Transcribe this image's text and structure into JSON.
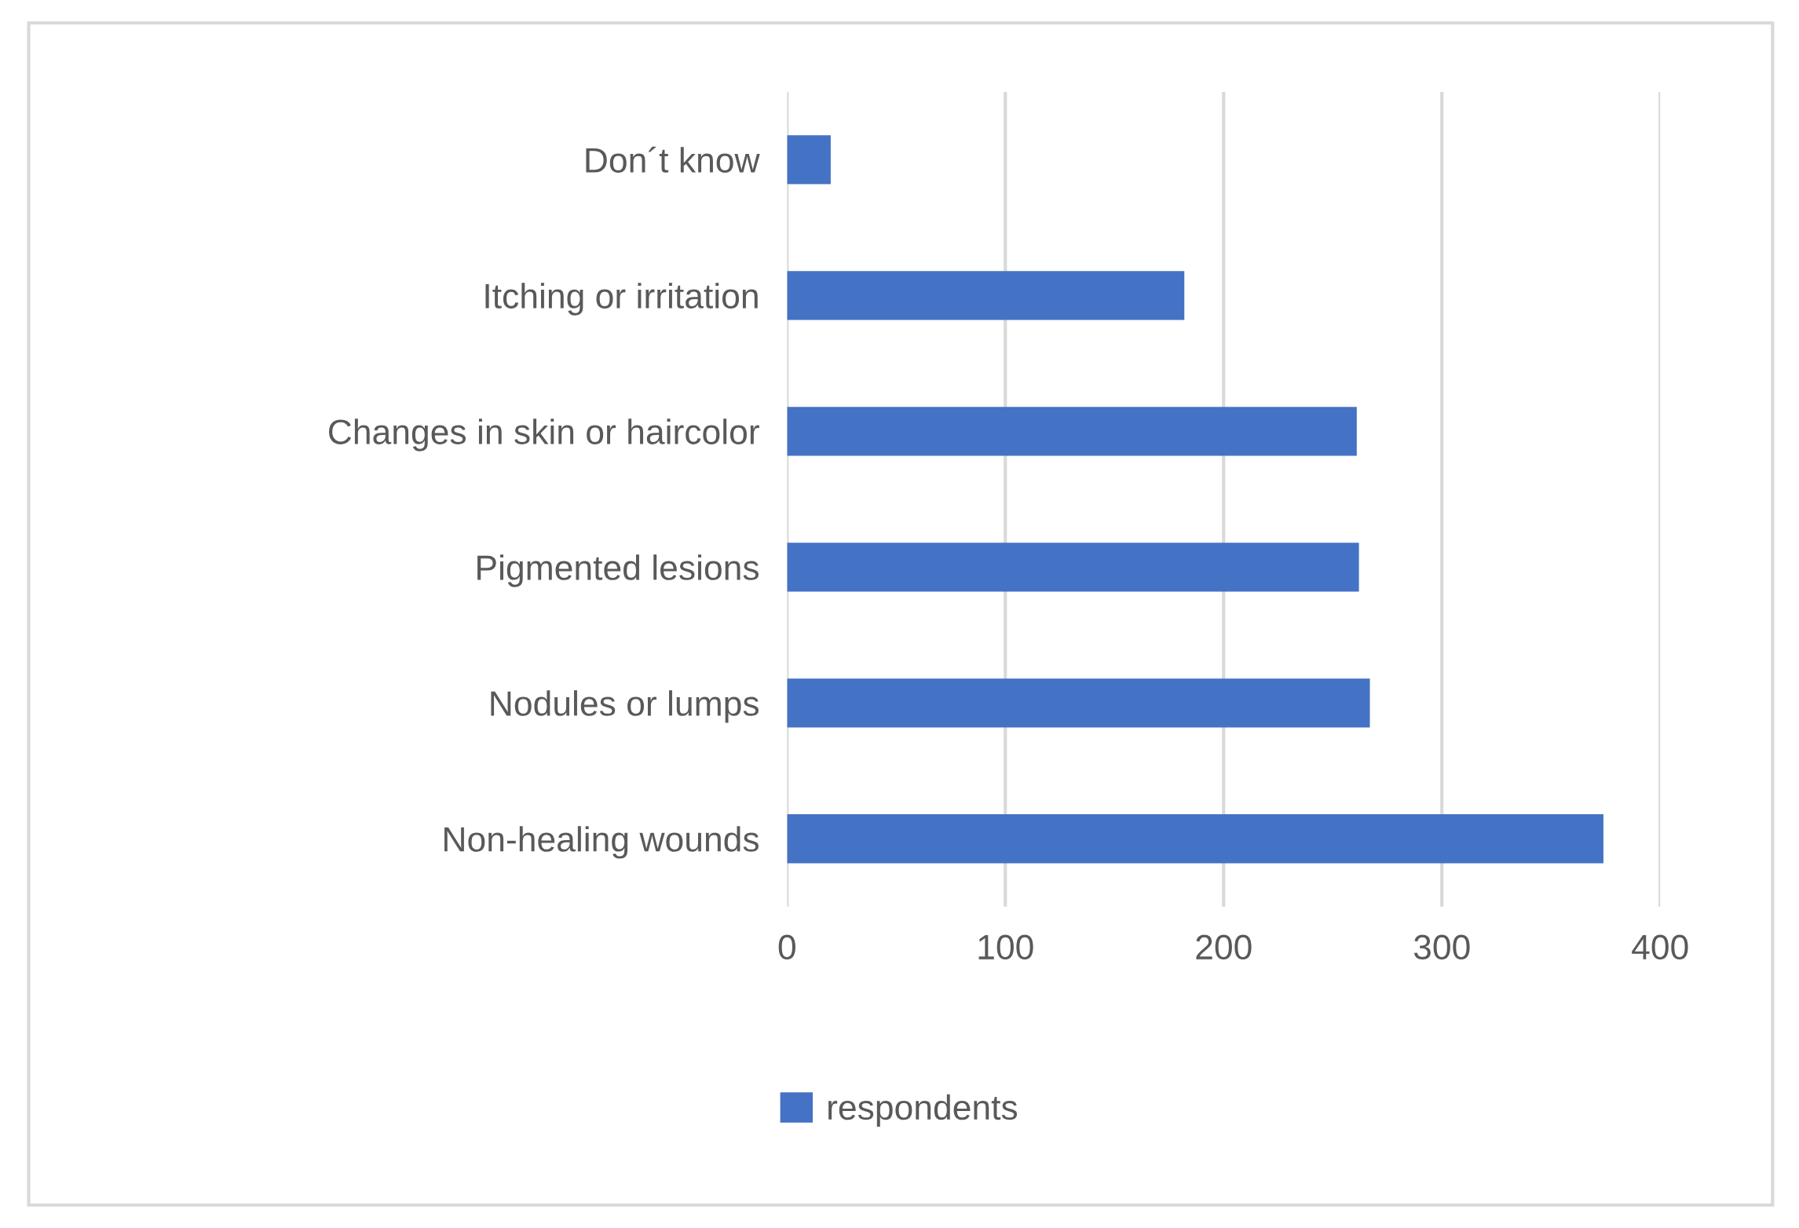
{
  "chart_data": {
    "type": "bar",
    "orientation": "horizontal",
    "categories": [
      "Don´t know",
      "Itching or irritation",
      "Changes in skin or haircolor",
      "Pigmented lesions",
      "Nodules or lumps",
      "Non-healing wounds"
    ],
    "series": [
      {
        "name": "respondents",
        "color": "#4472c4",
        "values": [
          20,
          182,
          261,
          262,
          267,
          374
        ]
      }
    ],
    "xlim": [
      0,
      400
    ],
    "xticks": [
      0,
      100,
      200,
      300,
      400
    ],
    "grid": "x",
    "legend": "bottom"
  }
}
